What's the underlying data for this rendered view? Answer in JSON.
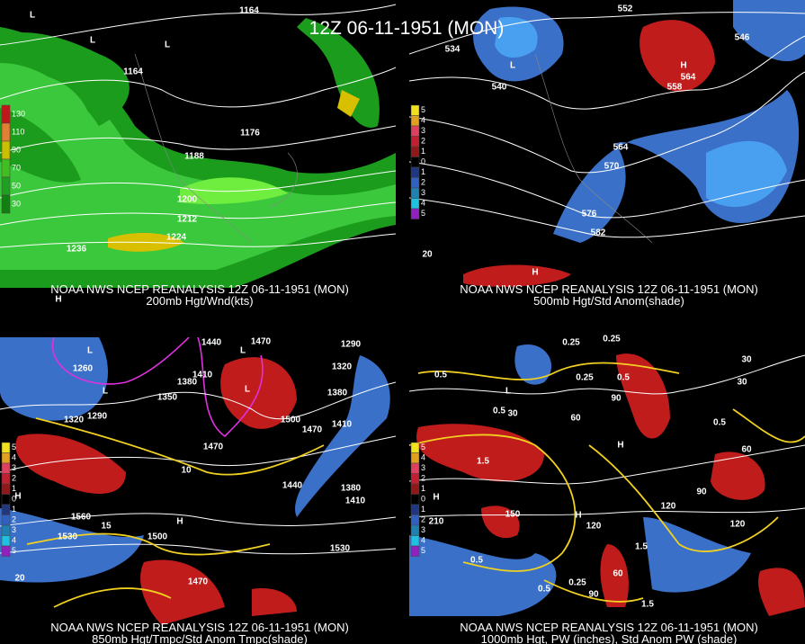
{
  "title": "12Z 06-11-1951 (MON)",
  "panels": [
    {
      "caption": [
        "NOAA NWS NCEP REANALYSIS 12Z 06-11-1951 (MON)",
        "200mb Hgt/Wnd(kts)"
      ],
      "colorbar": [
        "130",
        "110",
        "90",
        "70",
        "50",
        "30"
      ],
      "labels": [
        "1164",
        "1164",
        "1176",
        "1188",
        "1200",
        "1212",
        "1224",
        "1236",
        "L",
        "L",
        "L",
        "H"
      ]
    },
    {
      "caption": [
        "NOAA NWS NCEP REANALYSIS 12Z 06-11-1951 (MON)",
        "500mb Hgt/Std Anom(shade)"
      ],
      "colorbar": [
        "5",
        "4",
        "3",
        "2",
        "1",
        "0",
        "1",
        "2",
        "3",
        "4",
        "5"
      ],
      "labels": [
        "552",
        "546",
        "534",
        "540",
        "558",
        "564",
        "564",
        "570",
        "576",
        "582",
        "L",
        "H",
        "H",
        "20"
      ]
    },
    {
      "caption": [
        "NOAA NWS NCEP REANALYSIS 12Z 06-11-1951 (MON)",
        "850mb Hgt/Tmpc/Std Anom Tmpc(shade)"
      ],
      "colorbar": [
        "5",
        "4",
        "3",
        "2",
        "1",
        "0",
        "1",
        "2",
        "3",
        "4",
        "5"
      ],
      "labels": [
        "1440",
        "1470",
        "1290",
        "1320",
        "1380",
        "1410",
        "1380",
        "1350",
        "1320",
        "1290",
        "1260",
        "1470",
        "1500",
        "1470",
        "1410",
        "1440",
        "1380",
        "1410",
        "1560",
        "1530",
        "1500",
        "1530",
        "1470",
        "10",
        "15",
        "20",
        "L",
        "L",
        "L",
        "L",
        "H",
        "H"
      ]
    },
    {
      "caption": [
        "NOAA NWS NCEP REANALYSIS 12Z 06-11-1951 (MON)",
        "1000mb Hgt, PW (inches), Std Anom PW (shade)"
      ],
      "colorbar": [
        "5",
        "4",
        "3",
        "2",
        "1",
        "0",
        "1",
        "2",
        "3",
        "4",
        "5"
      ],
      "labels": [
        "0.25",
        "0.25",
        "0.5",
        "0.5",
        "0.25",
        "0.5",
        "0.5",
        "1.5",
        "30",
        "60",
        "90",
        "30",
        "30",
        "60",
        "90",
        "120",
        "120",
        "150",
        "120",
        "210",
        "0.5",
        "0.5",
        "0.25",
        "1.5",
        "1.5",
        "90",
        "60",
        "L",
        "H",
        "H",
        "H"
      ]
    }
  ]
}
